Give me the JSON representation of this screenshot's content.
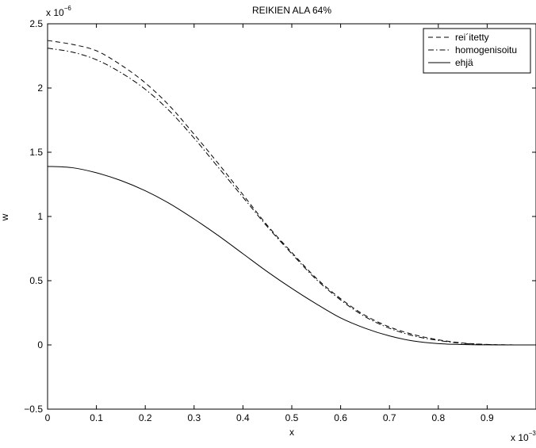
{
  "chart_data": {
    "type": "line",
    "title": "REIKIEN ALA 64%",
    "xlabel": "x",
    "ylabel": "w",
    "x_multiplier": "x 10",
    "x_exponent": "−3",
    "y_multiplier": "x 10",
    "y_exponent": "−6",
    "xlim": [
      0,
      0.001
    ],
    "ylim": [
      -5e-07,
      2.5e-06
    ],
    "x_ticks": [
      0,
      0.0001,
      0.0002,
      0.0003,
      0.0004,
      0.0005,
      0.0006,
      0.0007,
      0.0008,
      0.0009
    ],
    "x_tick_labels": [
      "0",
      "0.1",
      "0.2",
      "0.3",
      "0.4",
      "0.5",
      "0.6",
      "0.7",
      "0.8",
      "0.9"
    ],
    "y_ticks": [
      -5e-07,
      0,
      5e-07,
      1e-06,
      1.5e-06,
      2e-06,
      2.5e-06
    ],
    "y_tick_labels": [
      "−0.5",
      "0",
      "0.5",
      "1",
      "1.5",
      "2",
      "2.5"
    ],
    "grid": false,
    "legend_position": "top-right",
    "series": [
      {
        "name": "rei´itetty",
        "style": "dashed",
        "color": "#000000",
        "x": [
          0,
          5e-05,
          0.0001,
          0.00015,
          0.0002,
          0.00025,
          0.0003,
          0.00035,
          0.0004,
          0.00045,
          0.0005,
          0.00055,
          0.0006,
          0.00065,
          0.0007,
          0.00075,
          0.0008,
          0.00085,
          0.0009,
          0.00095,
          0.001
        ],
        "y": [
          2.37e-06,
          2.34e-06,
          2.29e-06,
          2.18e-06,
          2.04e-06,
          1.86e-06,
          1.64e-06,
          1.41e-06,
          1.17e-06,
          9.3e-07,
          7.2e-07,
          5.2e-07,
          3.6e-07,
          2.3e-07,
          1.4e-07,
          8e-08,
          4e-08,
          1.5e-08,
          4e-09,
          5e-10,
          0
        ]
      },
      {
        "name": "homogenisoitu",
        "style": "dashdot",
        "color": "#000000",
        "x": [
          0,
          5e-05,
          0.0001,
          0.00015,
          0.0002,
          0.00025,
          0.0003,
          0.00035,
          0.0004,
          0.00045,
          0.0005,
          0.00055,
          0.0006,
          0.00065,
          0.0007,
          0.00075,
          0.0008,
          0.00085,
          0.0009,
          0.00095,
          0.001
        ],
        "y": [
          2.31e-06,
          2.28e-06,
          2.22e-06,
          2.12e-06,
          1.99e-06,
          1.82e-06,
          1.61e-06,
          1.38e-06,
          1.15e-06,
          9.2e-07,
          7.1e-07,
          5.1e-07,
          3.5e-07,
          2.2e-07,
          1.3e-07,
          7e-08,
          3.5e-08,
          1.2e-08,
          3e-09,
          4e-10,
          0
        ]
      },
      {
        "name": "ehjä",
        "style": "solid",
        "color": "#000000",
        "x": [
          0,
          5e-05,
          0.0001,
          0.00015,
          0.0002,
          0.00025,
          0.0003,
          0.00035,
          0.0004,
          0.00045,
          0.0005,
          0.00055,
          0.0006,
          0.00065,
          0.0007,
          0.00075,
          0.0008,
          0.00085,
          0.0009,
          0.00095,
          0.001
        ],
        "y": [
          1.39e-06,
          1.38e-06,
          1.34e-06,
          1.28e-06,
          1.2e-06,
          1.1e-06,
          9.8e-07,
          8.5e-07,
          7.1e-07,
          5.7e-07,
          4.4e-07,
          3.2e-07,
          2.1e-07,
          1.3e-07,
          7e-08,
          3e-08,
          1e-08,
          3e-09,
          5e-10,
          0,
          0
        ]
      }
    ]
  }
}
